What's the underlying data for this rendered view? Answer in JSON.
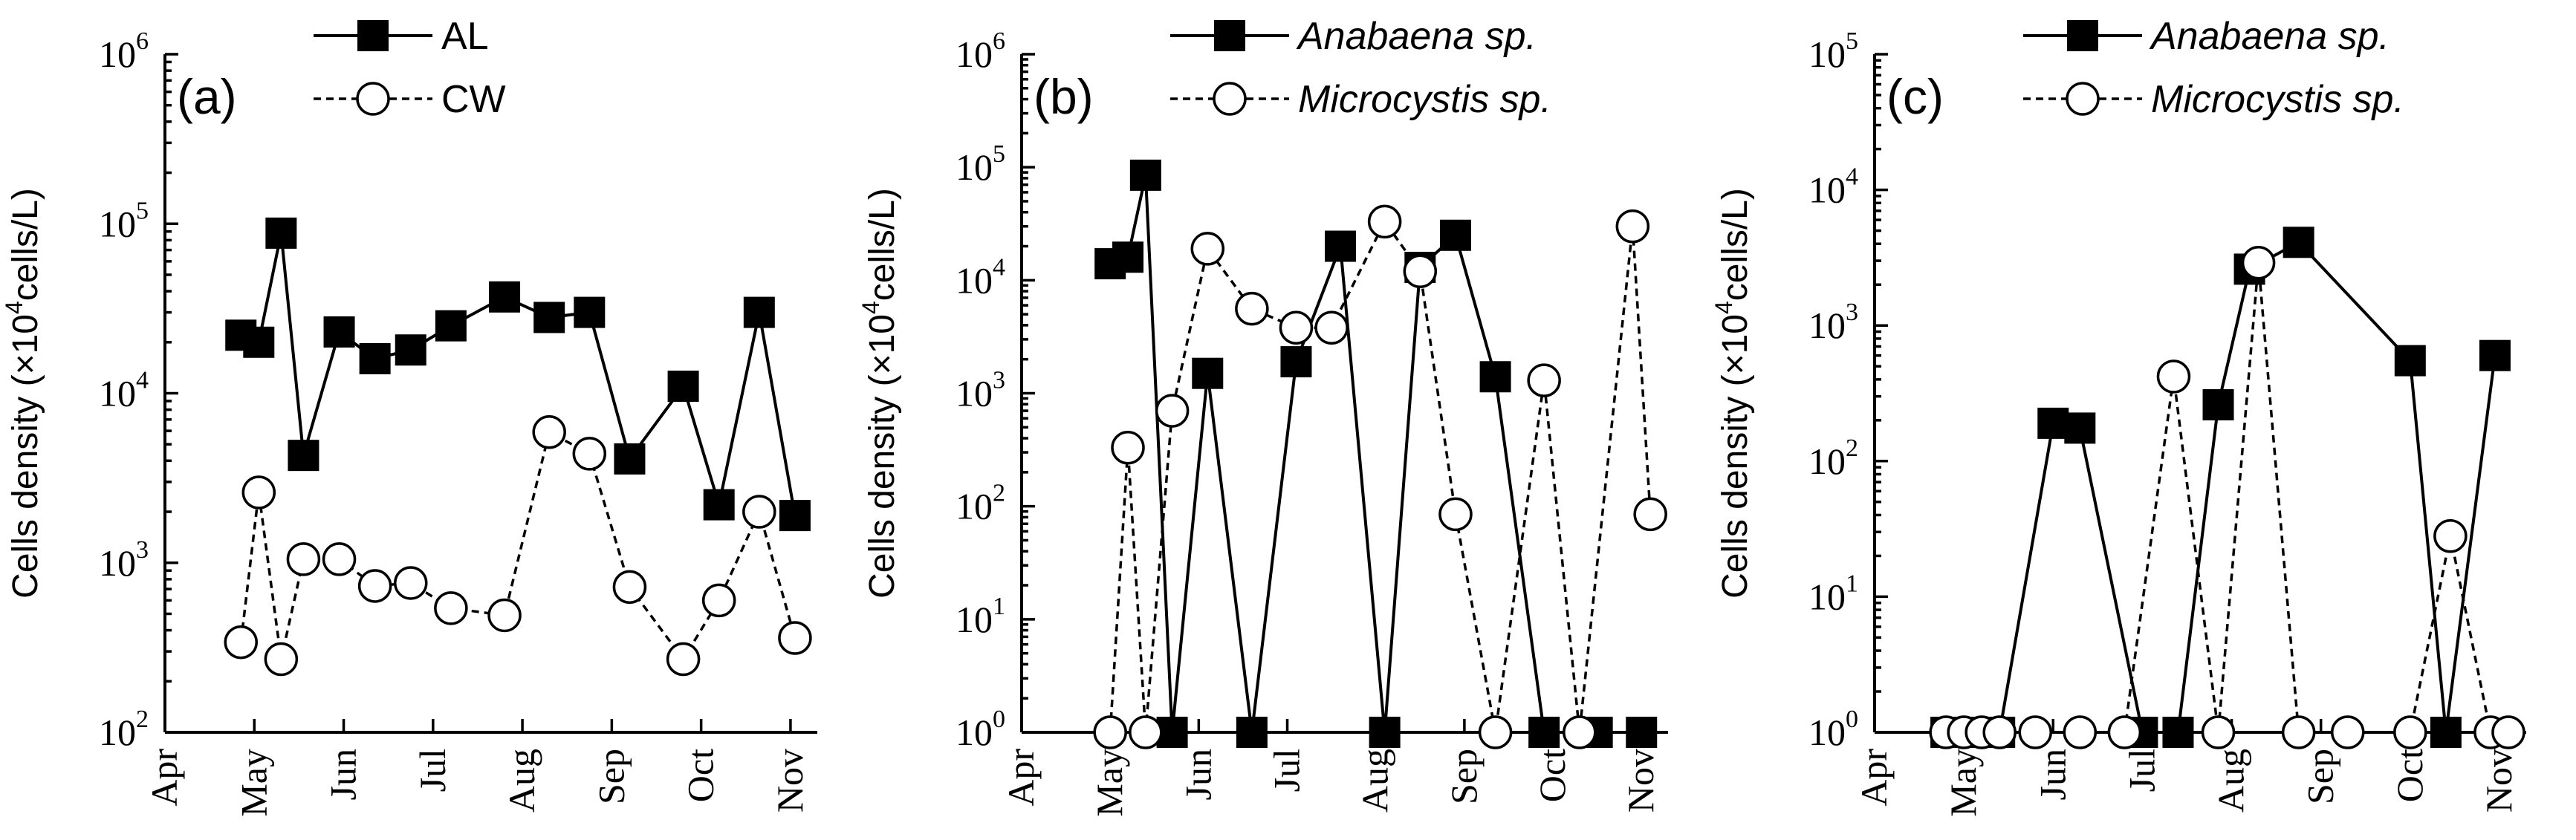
{
  "chart_data": [
    {
      "type": "line",
      "panel": "(a)",
      "yscale": "log",
      "ylim": [
        100,
        1000000
      ],
      "ylabel": "Cells density (×10⁴cells/L)",
      "ylabel_parts": {
        "prefix": "Cells density (×10",
        "exp": "4",
        "suffix": "cells/L)"
      },
      "ytick_exponents": [
        2,
        3,
        4,
        5,
        6
      ],
      "xlim": [
        0,
        7.3
      ],
      "xticks": [
        0,
        1,
        2,
        3,
        4,
        5,
        6,
        7
      ],
      "xtick_labels": [
        "Apr",
        "May",
        "Jun",
        "Jul",
        "Aug",
        "Sep",
        "Oct",
        "Nov"
      ],
      "legend_position": "top-center",
      "series": [
        {
          "name": "AL",
          "style": "solid-filled-square",
          "x": [
            0.85,
            1.05,
            1.3,
            1.55,
            1.95,
            2.35,
            2.75,
            3.2,
            3.8,
            4.3,
            4.75,
            5.2,
            5.8,
            6.2,
            6.65,
            7.05
          ],
          "values": [
            22000,
            20000,
            88000,
            4300,
            23000,
            16000,
            18000,
            25000,
            37000,
            28000,
            30000,
            4100,
            11000,
            2200,
            30000,
            1900
          ]
        },
        {
          "name": "CW",
          "style": "dashed-open-circle",
          "x": [
            0.85,
            1.05,
            1.3,
            1.55,
            1.95,
            2.35,
            2.75,
            3.2,
            3.8,
            4.3,
            4.75,
            5.2,
            5.8,
            6.2,
            6.65,
            7.05
          ],
          "values": [
            340,
            2600,
            270,
            1050,
            1050,
            730,
            760,
            540,
            490,
            5900,
            4400,
            720,
            270,
            600,
            2000,
            360
          ]
        }
      ]
    },
    {
      "type": "line",
      "panel": "(b)",
      "yscale": "log",
      "ylim": [
        1,
        1000000
      ],
      "ylabel": "Cells density (×10⁴cells/L)",
      "ylabel_parts": {
        "prefix": "Cells density (×10",
        "exp": "4",
        "suffix": "cells/L)"
      },
      "ytick_exponents": [
        0,
        1,
        2,
        3,
        4,
        5,
        6
      ],
      "xlim": [
        0,
        7.3
      ],
      "xticks": [
        0,
        1,
        2,
        3,
        4,
        5,
        6,
        7
      ],
      "xtick_labels": [
        "Apr",
        "May",
        "Jun",
        "Jul",
        "Aug",
        "Sep",
        "Oct",
        "Nov"
      ],
      "legend_position": "top-center",
      "series": [
        {
          "name": "Anabaena sp.",
          "style": "solid-filled-square",
          "x": [
            1.0,
            1.2,
            1.4,
            1.7,
            2.1,
            2.6,
            3.1,
            3.6,
            4.1,
            4.5,
            4.9,
            5.35,
            5.9,
            6.5,
            7.0
          ],
          "values": [
            14000,
            16000,
            85000,
            1,
            1500,
            1,
            1900,
            20000,
            1,
            13000,
            25000,
            1400,
            1,
            1,
            1
          ]
        },
        {
          "name": "Microcystis sp.",
          "style": "dashed-open-circle",
          "x": [
            1.0,
            1.2,
            1.4,
            1.7,
            2.1,
            2.6,
            3.1,
            3.5,
            4.1,
            4.5,
            4.9,
            5.35,
            5.9,
            6.3,
            6.9,
            7.1
          ],
          "values": [
            1,
            330,
            1,
            700,
            19000,
            5600,
            3800,
            3800,
            33000,
            12000,
            85,
            1,
            1300,
            1,
            30000,
            85
          ]
        }
      ]
    },
    {
      "type": "line",
      "panel": "(c)",
      "yscale": "log",
      "ylim": [
        1,
        100000
      ],
      "ylabel": "Cells density (×10⁴cells/L)",
      "ylabel_parts": {
        "prefix": "Cells density (×10",
        "exp": "4",
        "suffix": "cells/L)"
      },
      "ytick_exponents": [
        0,
        1,
        2,
        3,
        4,
        5
      ],
      "xlim": [
        0,
        7.3
      ],
      "xticks": [
        0,
        1,
        2,
        3,
        4,
        5,
        6,
        7
      ],
      "xtick_labels": [
        "Apr",
        "May",
        "Jun",
        "Jul",
        "Aug",
        "Sep",
        "Oct",
        "Nov"
      ],
      "legend_position": "top-center",
      "series": [
        {
          "name": "Anabaena sp.",
          "style": "solid-filled-square",
          "x": [
            0.8,
            1.0,
            1.2,
            1.4,
            2.0,
            2.3,
            3.0,
            3.4,
            3.85,
            4.2,
            4.75,
            6.0,
            6.4,
            6.95
          ],
          "values": [
            1,
            1,
            1,
            1,
            190,
            175,
            1,
            1,
            260,
            2600,
            4100,
            550,
            1,
            600
          ]
        },
        {
          "name": "Microcystis sp.",
          "style": "dashed-open-circle",
          "x": [
            0.8,
            1.0,
            1.2,
            1.4,
            1.8,
            2.3,
            2.8,
            3.35,
            3.85,
            4.3,
            4.75,
            5.3,
            6.0,
            6.45,
            6.9,
            7.1
          ],
          "values": [
            1,
            1,
            1,
            1,
            1,
            1,
            1,
            420,
            1,
            2900,
            1,
            1,
            1,
            28,
            1,
            1
          ]
        }
      ]
    }
  ]
}
